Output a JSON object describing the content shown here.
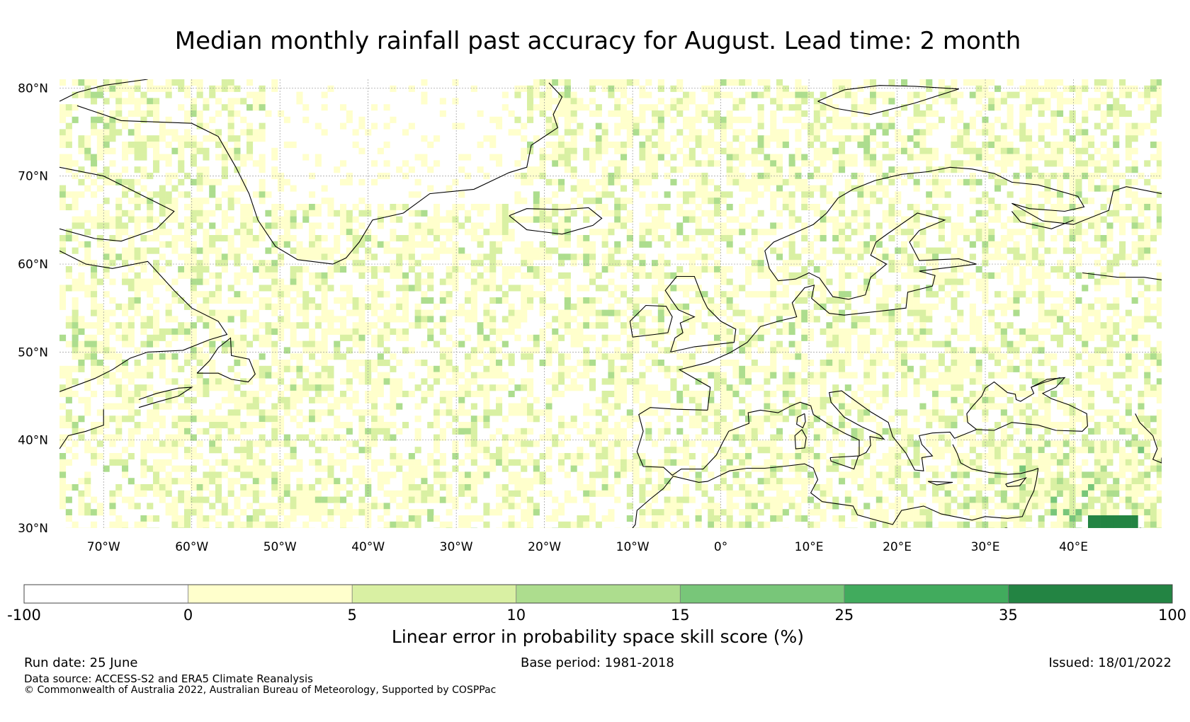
{
  "title": "Median monthly rainfall past accuracy for August. Lead time: 2 month",
  "map": {
    "lat_labels": [
      "80°N",
      "70°N",
      "60°N",
      "50°N",
      "40°N",
      "30°N"
    ],
    "lon_labels": [
      "70°W",
      "60°W",
      "50°W",
      "40°W",
      "30°W",
      "20°W",
      "10°W",
      "0°",
      "10°E",
      "20°E",
      "30°E",
      "40°E"
    ],
    "extent": {
      "lon": [
        -75,
        50
      ],
      "lat": [
        30,
        81
      ]
    },
    "gridlines": true,
    "coastline_color": "#000000"
  },
  "legend": {
    "title": "Linear error in probability space skill score (%)",
    "ticks": [
      "-100",
      "0",
      "5",
      "10",
      "15",
      "25",
      "35",
      "100"
    ],
    "bins": [
      {
        "from": -100,
        "to": 0,
        "color": "#ffffff"
      },
      {
        "from": 0,
        "to": 5,
        "color": "#ffffcc"
      },
      {
        "from": 5,
        "to": 10,
        "color": "#d9f0a3"
      },
      {
        "from": 10,
        "to": 15,
        "color": "#addd8e"
      },
      {
        "from": 15,
        "to": 25,
        "color": "#78c679"
      },
      {
        "from": 25,
        "to": 35,
        "color": "#41ab5d"
      },
      {
        "from": 35,
        "to": 100,
        "color": "#238443"
      }
    ]
  },
  "footer": {
    "run_date": "Run date: 25 June",
    "base_period": "Base period: 1981-2018",
    "issued": "Issued: 18/01/2022",
    "data_source": "Data source: ACCESS-S2 and ERA5 Climate Reanalysis",
    "copyright": "© Commonwealth of Australia 2022, Australian Bureau of Meteorology, Supported by COSPPac"
  }
}
